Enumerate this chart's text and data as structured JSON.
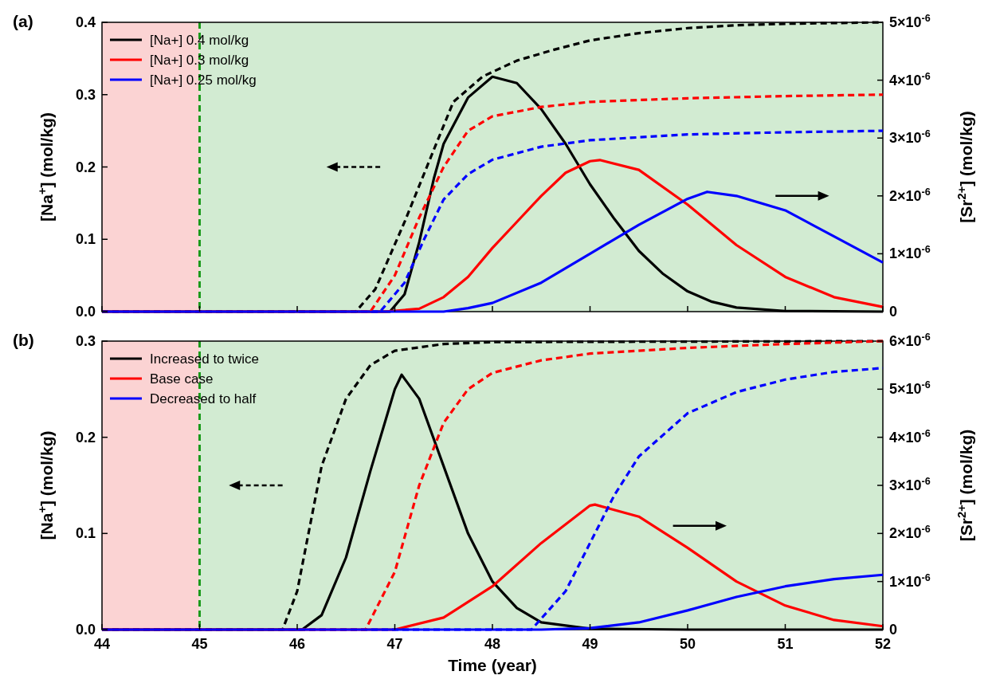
{
  "chart_data": [
    {
      "type": "line",
      "title": "(a)",
      "ylabel": "[Na$^{+}$] (mol/kg)",
      "y2label": "[Sr$^{2+}$] (mol/kg)",
      "xlim": [
        44,
        52
      ],
      "xticks": [
        44,
        45,
        46,
        47,
        48,
        49,
        50,
        51,
        52
      ],
      "ylim": [
        0,
        0.4
      ],
      "yticks": [
        {
          "value": 0,
          "label": "0.0"
        },
        0.1,
        0.2,
        0.3,
        0.4
      ],
      "y2lim": [
        0,
        5e-06
      ],
      "y2ticks": [
        {
          "value": 0,
          "label": "0"
        },
        {
          "value": 1e-06,
          "label": "1×10$^{-6}$"
        },
        {
          "value": 2e-06,
          "label": "2×10$^{-6}$"
        },
        {
          "value": 3e-06,
          "label": "3×10$^{-6}$"
        },
        {
          "value": 4e-06,
          "label": "4×10$^{-6}$"
        },
        {
          "value": 5e-06,
          "label": "5×10$^{-6}$"
        }
      ],
      "tick_labels": "y",
      "grid": false,
      "legend": "top left",
      "bands": [
        {
          "axis": "x",
          "from": 44,
          "to": 45,
          "color": "#fbd3d3"
        },
        {
          "axis": "x",
          "from": 45,
          "to": 52,
          "color": "#d2ebd2"
        }
      ],
      "ref_lines": [
        {
          "axis": "x",
          "value": 45,
          "color": "#1a9a1a",
          "line_style": "dashed"
        }
      ],
      "series": [
        {
          "name": "[Na+] 0.4 mol/kg",
          "color": "#000000",
          "axis": "y2",
          "line_style": "solid",
          "x": [
            44,
            46.95,
            47.1,
            47.25,
            47.4,
            47.5,
            47.75,
            48,
            48.25,
            48.5,
            48.75,
            49,
            49.25,
            49.5,
            49.75,
            50,
            50.25,
            50.5,
            51,
            52
          ],
          "values": [
            0,
            0,
            3e-07,
            1.2e-06,
            2.3e-06,
            2.9e-06,
            3.7e-06,
            4.06e-06,
            3.95e-06,
            3.5e-06,
            2.9e-06,
            2.2e-06,
            1.6e-06,
            1.05e-06,
            6.5e-07,
            3.5e-07,
            1.7e-07,
            7e-08,
            1e-08,
            0
          ]
        },
        {
          "name": "[Na+] 0.3 mol/kg",
          "color": "#ff0000",
          "axis": "y2",
          "line_style": "solid",
          "x": [
            44,
            46.9,
            47.25,
            47.5,
            47.75,
            48,
            48.25,
            48.5,
            48.75,
            49,
            49.1,
            49.5,
            50,
            50.5,
            51,
            51.5,
            52
          ],
          "values": [
            0,
            0,
            5e-08,
            2.5e-07,
            6e-07,
            1.1e-06,
            1.55e-06,
            2e-06,
            2.4e-06,
            2.6e-06,
            2.62e-06,
            2.45e-06,
            1.85e-06,
            1.15e-06,
            6e-07,
            2.5e-07,
            8e-08
          ]
        },
        {
          "name": "[Na+] 0.25 mol/kg",
          "color": "#0000ff",
          "axis": "y2",
          "line_style": "solid",
          "x": [
            44,
            47.5,
            47.75,
            48,
            48.5,
            49,
            49.5,
            50,
            50.2,
            50.5,
            51,
            51.5,
            52
          ],
          "values": [
            0,
            0,
            6e-08,
            1.5e-07,
            5e-07,
            1e-06,
            1.5e-06,
            1.95e-06,
            2.07e-06,
            2e-06,
            1.75e-06,
            1.3e-06,
            8.5e-07
          ]
        },
        {
          "color": "#000000",
          "line_style": "dashed",
          "x": [
            44,
            46.6,
            46.8,
            47.1,
            47.4,
            47.6,
            47.9,
            48.25,
            48.6,
            49,
            49.5,
            50,
            50.5,
            51,
            52
          ],
          "values": [
            0,
            0,
            0.031,
            0.124,
            0.224,
            0.29,
            0.325,
            0.347,
            0.361,
            0.375,
            0.385,
            0.392,
            0.396,
            0.398,
            0.4
          ]
        },
        {
          "color": "#ff0000",
          "line_style": "dashed",
          "x": [
            44,
            46.75,
            47,
            47.25,
            47.5,
            47.75,
            48,
            48.5,
            49,
            50,
            51,
            52
          ],
          "values": [
            0,
            0,
            0.05,
            0.13,
            0.2,
            0.25,
            0.27,
            0.283,
            0.29,
            0.295,
            0.298,
            0.3
          ]
        },
        {
          "color": "#0000ff",
          "line_style": "dashed",
          "x": [
            44,
            46.85,
            47.1,
            47.3,
            47.5,
            47.75,
            48,
            48.5,
            49,
            50,
            51,
            52
          ],
          "values": [
            0,
            0,
            0.04,
            0.1,
            0.155,
            0.19,
            0.21,
            0.228,
            0.237,
            0.245,
            0.248,
            0.25
          ]
        }
      ]
    },
    {
      "type": "line",
      "title": "(b)",
      "xlabel": "Time (year)",
      "ylabel": "[Na$^{+}$] (mol/kg)",
      "y2label": "[Sr$^{2+}$] (mol/kg)",
      "xlim": [
        44,
        52
      ],
      "xticks": [
        44,
        45,
        46,
        47,
        48,
        49,
        50,
        51,
        52
      ],
      "ylim": [
        0,
        0.3
      ],
      "yticks": [
        {
          "value": 0,
          "label": "0.0"
        },
        0.1,
        0.2,
        0.3
      ],
      "y2lim": [
        0,
        6e-06
      ],
      "y2ticks": [
        {
          "value": 0,
          "label": "0"
        },
        {
          "value": 1e-06,
          "label": "1×10$^{-6}$"
        },
        {
          "value": 2e-06,
          "label": "2×10$^{-6}$"
        },
        {
          "value": 3e-06,
          "label": "3×10$^{-6}$"
        },
        {
          "value": 4e-06,
          "label": "4×10$^{-6}$"
        },
        {
          "value": 5e-06,
          "label": "5×10$^{-6}$"
        },
        {
          "value": 6e-06,
          "label": "6×10$^{-6}$"
        }
      ],
      "grid": false,
      "legend": "top left",
      "bands": [
        {
          "axis": "x",
          "from": 44,
          "to": 45,
          "color": "#fbd3d3"
        },
        {
          "axis": "x",
          "from": 45,
          "to": 52,
          "color": "#d2ebd2"
        }
      ],
      "ref_lines": [
        {
          "axis": "x",
          "value": 45,
          "color": "#1a9a1a",
          "line_style": "dashed"
        }
      ],
      "series": [
        {
          "name": "Increased to twice",
          "color": "#000000",
          "axis": "y2",
          "line_style": "solid",
          "x": [
            44,
            46.05,
            46.25,
            46.5,
            46.75,
            47,
            47.07,
            47.25,
            47.5,
            47.75,
            48,
            48.25,
            48.5,
            49,
            50,
            52
          ],
          "values": [
            0,
            0,
            3e-07,
            1.5e-06,
            3.3e-06,
            5e-06,
            5.3e-06,
            4.8e-06,
            3.4e-06,
            2e-06,
            1e-06,
            4.5e-07,
            1.5e-07,
            2e-08,
            0,
            0
          ]
        },
        {
          "name": "Base case",
          "color": "#ff0000",
          "axis": "y2",
          "line_style": "solid",
          "x": [
            44,
            47,
            47.5,
            48,
            48.5,
            49,
            49.05,
            49.5,
            50,
            50.5,
            51,
            51.5,
            52
          ],
          "values": [
            0,
            0,
            2.5e-07,
            9e-07,
            1.8e-06,
            2.58e-06,
            2.6e-06,
            2.35e-06,
            1.7e-06,
            1e-06,
            5e-07,
            2e-07,
            7e-08
          ]
        },
        {
          "name": "Decreased to half",
          "color": "#0000ff",
          "axis": "y2",
          "line_style": "solid",
          "x": [
            44,
            48.5,
            49,
            49.5,
            50,
            50.5,
            51,
            51.5,
            52
          ],
          "values": [
            0,
            0,
            3e-08,
            1.5e-07,
            4e-07,
            6.8e-07,
            9e-07,
            1.05e-06,
            1.14e-06
          ]
        },
        {
          "color": "#000000",
          "line_style": "dashed",
          "x": [
            44,
            45.85,
            46,
            46.25,
            46.5,
            46.75,
            47,
            47.5,
            48,
            52
          ],
          "values": [
            0,
            0,
            0.04,
            0.17,
            0.24,
            0.275,
            0.29,
            0.297,
            0.299,
            0.3
          ]
        },
        {
          "color": "#ff0000",
          "line_style": "dashed",
          "x": [
            44,
            46.7,
            47,
            47.25,
            47.5,
            47.75,
            48,
            48.5,
            49,
            50,
            51,
            52
          ],
          "values": [
            0,
            0,
            0.06,
            0.15,
            0.215,
            0.25,
            0.267,
            0.28,
            0.287,
            0.293,
            0.297,
            0.3
          ]
        },
        {
          "color": "#0000ff",
          "line_style": "dashed",
          "x": [
            44,
            48.4,
            48.75,
            49,
            49.25,
            49.5,
            50,
            50.5,
            51,
            51.5,
            52
          ],
          "values": [
            0,
            0,
            0.04,
            0.09,
            0.14,
            0.18,
            0.225,
            0.247,
            0.26,
            0.268,
            0.272
          ]
        }
      ]
    }
  ]
}
